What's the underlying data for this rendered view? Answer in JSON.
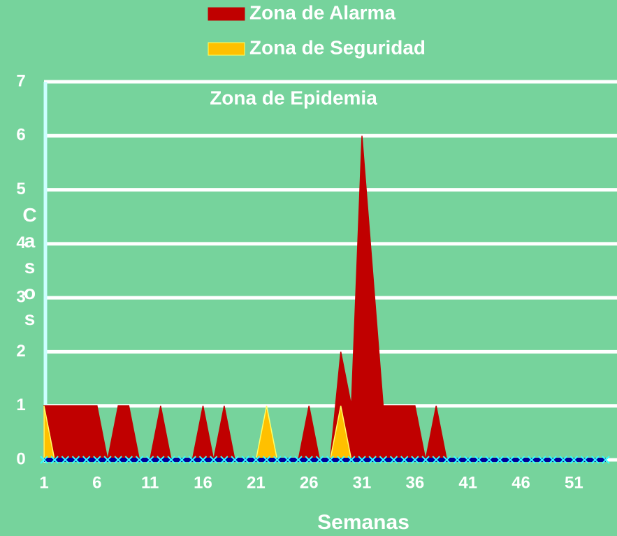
{
  "chart_data": {
    "type": "area",
    "annotation": "Zona de Epidemia",
    "x_label": "Semanas",
    "y_label": "Casos",
    "x": [
      1,
      2,
      3,
      4,
      5,
      6,
      7,
      8,
      9,
      10,
      11,
      12,
      13,
      14,
      15,
      16,
      17,
      18,
      19,
      20,
      21,
      22,
      23,
      24,
      25,
      26,
      27,
      28,
      29,
      30,
      31,
      32,
      33,
      34,
      35,
      36,
      37,
      38,
      39,
      40,
      41,
      42,
      43,
      44,
      45,
      46,
      47,
      48,
      49,
      50,
      51,
      52,
      53,
      54
    ],
    "series": [
      {
        "name": "Zona de Alarma",
        "color": "#c00000",
        "values": [
          1,
          1,
          1,
          1,
          1,
          1,
          0,
          1,
          1,
          0,
          0,
          1,
          0,
          0,
          0,
          1,
          0,
          1,
          0,
          0,
          0,
          0,
          0,
          0,
          0,
          1,
          0,
          0,
          2,
          1,
          6,
          3.5,
          1,
          1,
          1,
          1,
          0,
          1,
          0,
          0,
          0,
          0,
          0,
          0,
          0,
          0,
          0,
          0,
          0,
          0,
          0,
          0,
          0,
          0
        ]
      },
      {
        "name": "Zona de Seguridad",
        "color": "#ffc000",
        "values": [
          1,
          0,
          0,
          0,
          0,
          0,
          0,
          0,
          0,
          0,
          0,
          0,
          0,
          0,
          0,
          0,
          0,
          0,
          0,
          0,
          0,
          1,
          0,
          0,
          0,
          0,
          0,
          0,
          1,
          0,
          0,
          0,
          0,
          0,
          0,
          0,
          0,
          0,
          0,
          0,
          0,
          0,
          0,
          0,
          0,
          0,
          0,
          0,
          0,
          0,
          0,
          0,
          0,
          0
        ]
      },
      {
        "color": "#000099",
        "marker_color": "#33ffff",
        "values": [
          0,
          0,
          0,
          0,
          0,
          0,
          0,
          0,
          0,
          0,
          0,
          0,
          0,
          0,
          0,
          0,
          0,
          0,
          0,
          0,
          0,
          0,
          0,
          0,
          0,
          0,
          0,
          0,
          0,
          0,
          0,
          0,
          0,
          0,
          0,
          0,
          0,
          0,
          0,
          0,
          0,
          0,
          0,
          0,
          0,
          0,
          0,
          0,
          0,
          0,
          0,
          0,
          0,
          0
        ]
      }
    ],
    "xlim": [
      1,
      54.6
    ],
    "xticks": [
      1,
      6,
      11,
      16,
      21,
      26,
      31,
      36,
      41,
      46,
      51
    ],
    "ylim": [
      0,
      7
    ],
    "yticks": [
      0,
      1,
      2,
      3,
      4,
      5,
      6,
      7
    ],
    "grid": true
  }
}
